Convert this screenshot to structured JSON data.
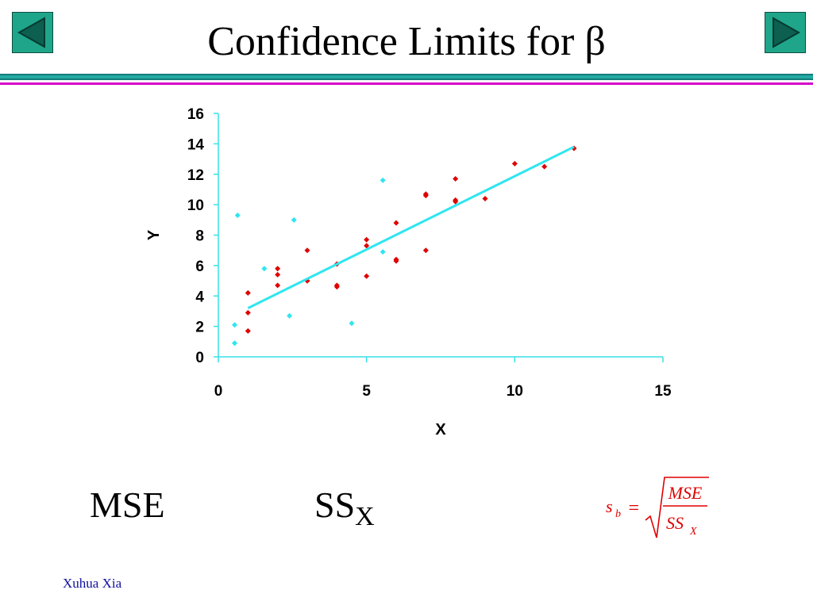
{
  "title": "Confidence Limits for β",
  "nav": {
    "prev_icon": "triangle-left-icon",
    "next_icon": "triangle-right-icon",
    "color": "#1fa58a"
  },
  "chart_data": {
    "type": "scatter",
    "title": "",
    "xlabel": "X",
    "ylabel": "Y",
    "xlim": [
      0,
      15
    ],
    "ylim": [
      0,
      16
    ],
    "x_ticks": [
      0,
      5,
      10,
      15
    ],
    "y_ticks": [
      0,
      2,
      4,
      6,
      8,
      10,
      12,
      14,
      16
    ],
    "grid": false,
    "legend": "none",
    "series": [
      {
        "color": "#e00000",
        "points": [
          [
            1,
            1.7
          ],
          [
            1,
            2.9
          ],
          [
            1,
            4.2
          ],
          [
            2,
            4.7
          ],
          [
            2,
            5.4
          ],
          [
            2,
            5.8
          ],
          [
            3,
            5.0
          ],
          [
            3,
            5.0
          ],
          [
            3,
            7.0
          ],
          [
            4,
            4.6
          ],
          [
            4,
            4.7
          ],
          [
            4,
            6.1
          ],
          [
            5,
            5.3
          ],
          [
            5,
            7.3
          ],
          [
            5,
            7.7
          ],
          [
            6,
            6.3
          ],
          [
            6,
            6.4
          ],
          [
            6,
            8.8
          ],
          [
            7,
            7.0
          ],
          [
            7,
            10.6
          ],
          [
            7,
            10.7
          ],
          [
            8,
            10.2
          ],
          [
            8,
            10.3
          ],
          [
            8,
            11.7
          ],
          [
            9,
            10.4
          ],
          [
            10,
            12.7
          ],
          [
            11,
            12.5
          ],
          [
            12,
            13.7
          ]
        ]
      },
      {
        "color": "#2ee6f0",
        "points": [
          [
            0.55,
            0.9
          ],
          [
            0.55,
            2.1
          ],
          [
            0.65,
            9.3
          ],
          [
            1.55,
            5.8
          ],
          [
            2.4,
            2.7
          ],
          [
            2.55,
            9.0
          ],
          [
            4.5,
            2.2
          ],
          [
            5.55,
            6.9
          ],
          [
            5.55,
            11.6
          ]
        ]
      },
      {
        "type": "line",
        "color": "#2ee6f0",
        "x": [
          1,
          12
        ],
        "y": [
          3.2,
          13.8
        ]
      }
    ]
  },
  "labels": {
    "mse": "MSE",
    "ss": "SS",
    "ss_sub": "X"
  },
  "formula": {
    "lhs": "s",
    "lhs_sub": "b",
    "eq": "=",
    "num": "MSE",
    "den": "SS",
    "den_sub": "X",
    "color": "#e00000"
  },
  "footer": "Xuhua Xia"
}
